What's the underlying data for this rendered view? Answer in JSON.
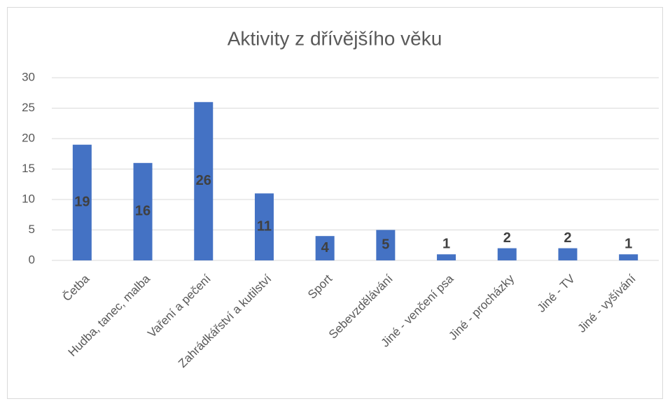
{
  "chart_data": {
    "type": "bar",
    "title": "Aktivity z dřívějšího věku",
    "categories": [
      "Četba",
      "Hudba, tanec, malba",
      "Vaření a pečení",
      "Zahrádkářství a kutilství",
      "Sport",
      "Sebevzdělávání",
      "Jiné - venčení psa",
      "Jiné - procházky",
      "Jiné - TV",
      "Jiné - vyšívání"
    ],
    "values": [
      19,
      16,
      26,
      11,
      4,
      5,
      1,
      2,
      2,
      1
    ],
    "color": "#4472c4",
    "ylim": [
      0,
      30
    ],
    "yticks": [
      0,
      5,
      10,
      15,
      20,
      25,
      30
    ],
    "grid": true
  }
}
